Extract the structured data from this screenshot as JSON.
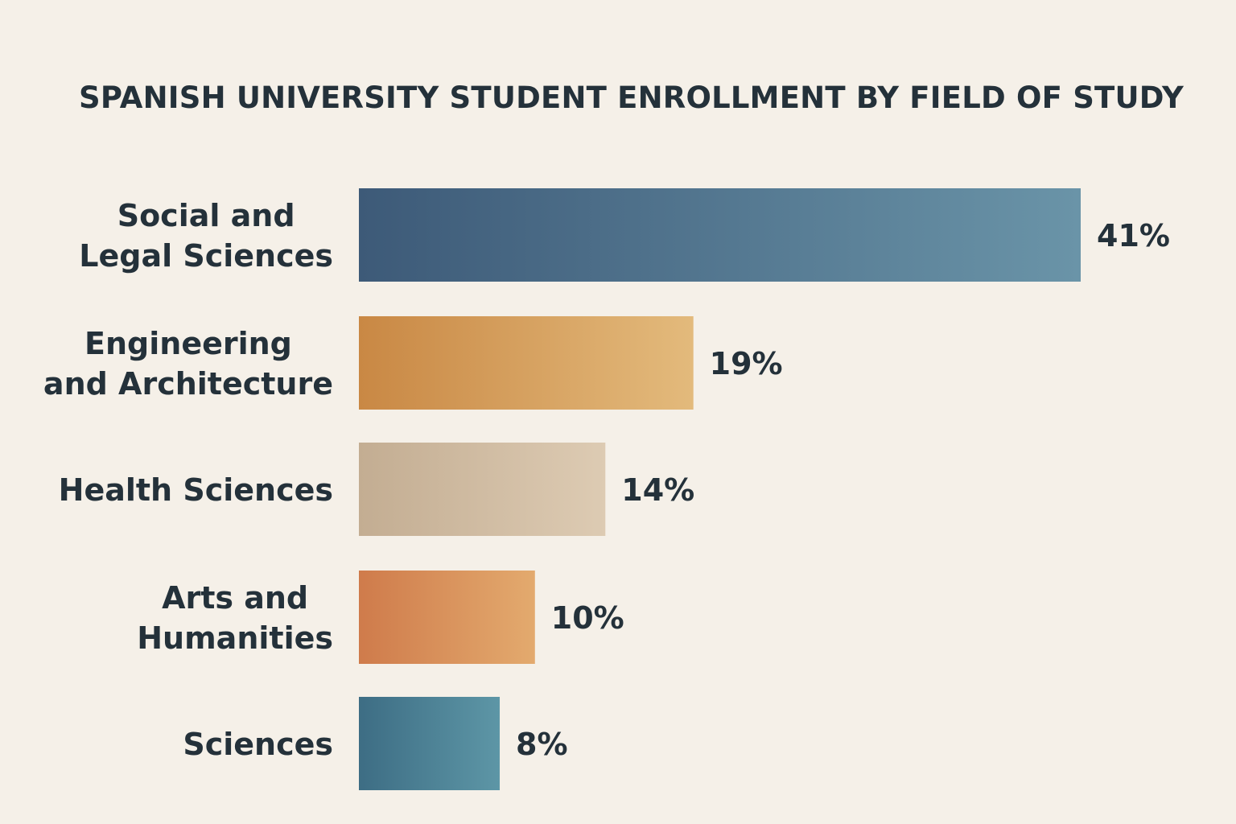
{
  "chart_data": {
    "type": "bar",
    "orientation": "horizontal",
    "title": "SPANISH UNIVERSITY STUDENT ENROLLMENT BY FIELD OF STUDY",
    "categories": [
      [
        "Social and",
        "Legal Sciences"
      ],
      [
        "Engineering",
        "and Architecture"
      ],
      [
        "Health Sciences"
      ],
      [
        "Arts and",
        "Humanities"
      ],
      [
        "Sciences"
      ]
    ],
    "values": [
      41,
      19,
      14,
      10,
      8
    ],
    "value_labels": [
      "41%",
      "19%",
      "14%",
      "10%",
      "8%"
    ],
    "bar_colors": [
      [
        "#3d5a78",
        "#6a94a8"
      ],
      [
        "#c98844",
        "#e3ba7c"
      ],
      [
        "#c3ad92",
        "#ddcbb3"
      ],
      [
        "#cf7b4b",
        "#e3aa6e"
      ],
      [
        "#3d6d84",
        "#5d96a6"
      ]
    ],
    "xlabel": "",
    "ylabel": "",
    "grid": false,
    "legend": "none"
  }
}
